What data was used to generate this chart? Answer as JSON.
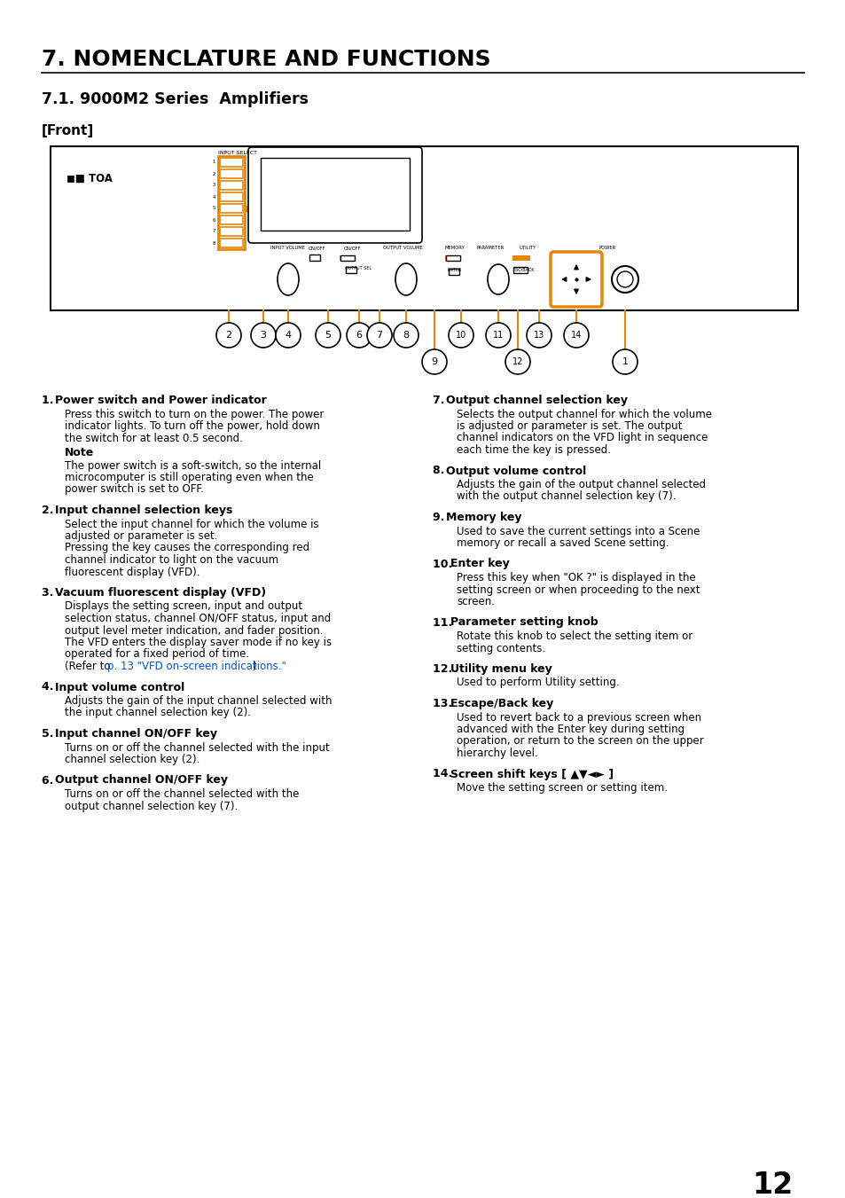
{
  "title": "7. NOMENCLATURE AND FUNCTIONS",
  "subtitle": "7.1. 9000M2 Series  Amplifiers",
  "subtitle2": "[Front]",
  "orange": "#E8860A",
  "black": "#000000",
  "blue": "#0055CC",
  "bg": "#FFFFFF",
  "page_number": "12",
  "items_left": [
    {
      "num": "1.",
      "bold": "Power switch and Power indicator",
      "body": "Press this switch to turn on the power. The power\nindicator lights. To turn off the power, hold down\nthe switch for at least 0.5 second.",
      "note_bold": "Note",
      "note_body": "The power switch is a soft-switch, so the internal\nmicrocomputer is still operating even when the\npower switch is set to OFF."
    },
    {
      "num": "2.",
      "bold": "Input channel selection keys",
      "body": "Select the input channel for which the volume is\nadjusted or parameter is set.\nPressing the key causes the corresponding red\nchannel indicator to light on the vacuum\nfluorescent display (VFD)."
    },
    {
      "num": "3.",
      "bold": "Vacuum fluorescent display (VFD)",
      "body": "Displays the setting screen, input and output\nselection status, channel ON/OFF status, input and\noutput level meter indication, and fader position.\nThe VFD enters the display saver mode if no key is\noperated for a fixed period of time.",
      "link": true
    },
    {
      "num": "4.",
      "bold": "Input volume control",
      "body": "Adjusts the gain of the input channel selected with\nthe input channel selection key (2)."
    },
    {
      "num": "5.",
      "bold": "Input channel ON/OFF key",
      "body": "Turns on or off the channel selected with the input\nchannel selection key (2)."
    },
    {
      "num": "6.",
      "bold": "Output channel ON/OFF key",
      "body": "Turns on or off the channel selected with the\noutput channel selection key (7)."
    }
  ],
  "items_right": [
    {
      "num": "7.",
      "bold": "Output channel selection key",
      "body": "Selects the output channel for which the volume\nis adjusted or parameter is set. The output\nchannel indicators on the VFD light in sequence\neach time the key is pressed."
    },
    {
      "num": "8.",
      "bold": "Output volume control",
      "body": "Adjusts the gain of the output channel selected\nwith the output channel selection key (7)."
    },
    {
      "num": "9.",
      "bold": "Memory key",
      "body": "Used to save the current settings into a Scene\nmemory or recall a saved Scene setting."
    },
    {
      "num": "10.",
      "bold": "Enter key",
      "body": "Press this key when \"OK ?\" is displayed in the\nsetting screen or when proceeding to the next\nscreen."
    },
    {
      "num": "11.",
      "bold": "Parameter setting knob",
      "body": "Rotate this knob to select the setting item or\nsetting contents."
    },
    {
      "num": "12.",
      "bold": "Utility menu key",
      "body": "Used to perform Utility setting."
    },
    {
      "num": "13.",
      "bold": "Escape/Back key",
      "body": "Used to revert back to a previous screen when\nadvanced with the Enter key during setting\noperation, or return to the screen on the upper\nhierarchy level."
    },
    {
      "num": "14.",
      "bold": "Screen shift keys [ ▲▼◄► ]",
      "body": "Move the setting screen or setting item."
    }
  ]
}
